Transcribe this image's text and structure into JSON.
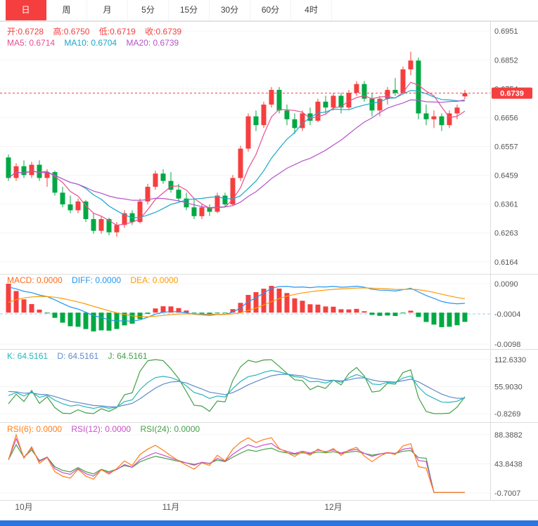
{
  "toolbar": {
    "tabs": [
      {
        "label": "日",
        "active": true
      },
      {
        "label": "周",
        "active": false
      },
      {
        "label": "月",
        "active": false
      },
      {
        "label": "5分",
        "active": false
      },
      {
        "label": "15分",
        "active": false
      },
      {
        "label": "30分",
        "active": false
      },
      {
        "label": "60分",
        "active": false
      },
      {
        "label": "4时",
        "active": false
      }
    ]
  },
  "main_panel": {
    "ohlc": {
      "open": "开:0.6728",
      "high": "高:0.6750",
      "low": "低:0.6719",
      "close": "收:0.6739"
    },
    "ma": {
      "ma5": "MA5: 0.6714",
      "ma10": "MA10: 0.6704",
      "ma20": "MA20: 0.6739"
    },
    "price_badge": "0.6739"
  },
  "macd_panel": {
    "labels": {
      "macd": "MACD: 0.0000",
      "diff": "DIFF: 0.0000",
      "dea": "DEA: 0.0000"
    }
  },
  "kdj_panel": {
    "labels": {
      "k": "K: 64.5161",
      "d": "D: 64.5161",
      "j": "J: 64.5161"
    }
  },
  "rsi_panel": {
    "labels": {
      "rsi6": "RSI(6): 0.0000",
      "rsi12": "RSI(12): 0.0000",
      "rsi24": "RSI(24): 0.0000"
    }
  },
  "chart_data": {
    "type": "candlestick",
    "title": "",
    "x_axis": {
      "month_labels": [
        {
          "label": "10月",
          "index": 2
        },
        {
          "label": "11月",
          "index": 21
        },
        {
          "label": "12月",
          "index": 42
        }
      ]
    },
    "price_axis": {
      "ticks": [
        "0.6951",
        "0.6852",
        "0.6754",
        "0.6656",
        "0.6557",
        "0.6459",
        "0.6361",
        "0.6263",
        "0.6164"
      ],
      "range": [
        0.6164,
        0.6951
      ],
      "current_price": 0.6739
    },
    "candles": [
      [
        0.652,
        0.653,
        0.644,
        0.645
      ],
      [
        0.645,
        0.65,
        0.644,
        0.649
      ],
      [
        0.649,
        0.651,
        0.645,
        0.646
      ],
      [
        0.646,
        0.6505,
        0.645,
        0.6495
      ],
      [
        0.6495,
        0.651,
        0.644,
        0.645
      ],
      [
        0.645,
        0.648,
        0.642,
        0.647
      ],
      [
        0.647,
        0.6475,
        0.639,
        0.64
      ],
      [
        0.64,
        0.642,
        0.635,
        0.636
      ],
      [
        0.636,
        0.639,
        0.633,
        0.634
      ],
      [
        0.634,
        0.638,
        0.633,
        0.637
      ],
      [
        0.637,
        0.6375,
        0.63,
        0.631
      ],
      [
        0.631,
        0.633,
        0.626,
        0.627
      ],
      [
        0.627,
        0.632,
        0.626,
        0.631
      ],
      [
        0.631,
        0.6315,
        0.6255,
        0.6265
      ],
      [
        0.6265,
        0.63,
        0.625,
        0.629
      ],
      [
        0.629,
        0.634,
        0.628,
        0.633
      ],
      [
        0.633,
        0.634,
        0.629,
        0.63
      ],
      [
        0.63,
        0.638,
        0.6295,
        0.637
      ],
      [
        0.637,
        0.643,
        0.636,
        0.642
      ],
      [
        0.642,
        0.6475,
        0.641,
        0.6465
      ],
      [
        0.6465,
        0.648,
        0.643,
        0.644
      ],
      [
        0.644,
        0.647,
        0.64,
        0.641
      ],
      [
        0.641,
        0.643,
        0.637,
        0.638
      ],
      [
        0.638,
        0.64,
        0.634,
        0.635
      ],
      [
        0.635,
        0.638,
        0.631,
        0.632
      ],
      [
        0.632,
        0.636,
        0.631,
        0.635
      ],
      [
        0.635,
        0.636,
        0.632,
        0.6335
      ],
      [
        0.6335,
        0.64,
        0.633,
        0.639
      ],
      [
        0.639,
        0.64,
        0.635,
        0.636
      ],
      [
        0.636,
        0.646,
        0.6355,
        0.645
      ],
      [
        0.645,
        0.656,
        0.644,
        0.655
      ],
      [
        0.655,
        0.667,
        0.654,
        0.666
      ],
      [
        0.666,
        0.668,
        0.661,
        0.663
      ],
      [
        0.663,
        0.671,
        0.662,
        0.67
      ],
      [
        0.67,
        0.676,
        0.669,
        0.675
      ],
      [
        0.675,
        0.676,
        0.667,
        0.668
      ],
      [
        0.668,
        0.67,
        0.663,
        0.665
      ],
      [
        0.665,
        0.667,
        0.66,
        0.662
      ],
      [
        0.662,
        0.668,
        0.661,
        0.667
      ],
      [
        0.667,
        0.669,
        0.663,
        0.6645
      ],
      [
        0.6645,
        0.672,
        0.664,
        0.671
      ],
      [
        0.671,
        0.673,
        0.667,
        0.669
      ],
      [
        0.669,
        0.674,
        0.668,
        0.673
      ],
      [
        0.673,
        0.674,
        0.667,
        0.669
      ],
      [
        0.669,
        0.675,
        0.6685,
        0.674
      ],
      [
        0.674,
        0.678,
        0.673,
        0.677
      ],
      [
        0.677,
        0.678,
        0.671,
        0.672
      ],
      [
        0.672,
        0.674,
        0.666,
        0.668
      ],
      [
        0.668,
        0.673,
        0.666,
        0.672
      ],
      [
        0.672,
        0.676,
        0.67,
        0.675
      ],
      [
        0.675,
        0.679,
        0.673,
        0.674
      ],
      [
        0.674,
        0.683,
        0.6735,
        0.682
      ],
      [
        0.682,
        0.688,
        0.68,
        0.685
      ],
      [
        0.685,
        0.686,
        0.665,
        0.667
      ],
      [
        0.667,
        0.67,
        0.663,
        0.665
      ],
      [
        0.665,
        0.668,
        0.662,
        0.666
      ],
      [
        0.666,
        0.667,
        0.661,
        0.663
      ],
      [
        0.663,
        0.668,
        0.662,
        0.667
      ],
      [
        0.667,
        0.67,
        0.665,
        0.669
      ],
      [
        0.6728,
        0.675,
        0.6719,
        0.6739
      ]
    ],
    "moving_averages": {
      "windows": [
        5,
        10,
        20
      ],
      "ma5": 0.6714,
      "ma10": 0.6704,
      "ma20": 0.6739
    },
    "indicators": {
      "macd": {
        "readout": {
          "macd": 0.0,
          "diff": 0.0,
          "dea": 0.0
        },
        "axis_ticks": [
          "0.0090",
          "-0.0004",
          "-0.0098"
        ],
        "range": [
          -0.0098,
          0.009
        ]
      },
      "kdj": {
        "readout": {
          "k": 64.5161,
          "d": 64.5161,
          "j": 64.5161
        },
        "axis_ticks": [
          "112.6330",
          "55.9030",
          "-0.8269"
        ],
        "range": [
          -0.8269,
          112.633
        ],
        "period": 9
      },
      "rsi": {
        "readout": {
          "rsi6": 0.0,
          "rsi12": 0.0,
          "rsi24": 0.0
        },
        "axis_ticks": [
          "88.3882",
          "43.8438",
          "-0.7007"
        ],
        "range": [
          -0.7007,
          88.3882
        ],
        "periods": [
          6,
          12,
          24
        ],
        "flat_zero_from": 55
      }
    },
    "colors": {
      "up": "#f53f3f",
      "down": "#00a843",
      "ma5": "#e94f8e",
      "ma10": "#1ba7c9",
      "ma20": "#b455c8",
      "diff": "#2196f3",
      "dea": "#ff9900",
      "k": "#26b6bb",
      "d": "#5e8bc9",
      "j": "#43a047",
      "rsi6": "#ff7d1a",
      "rsi12": "#c84fc8",
      "rsi24": "#43a047",
      "badge": "#f53f3f",
      "dashed_mid": "#8fd4f0"
    }
  }
}
